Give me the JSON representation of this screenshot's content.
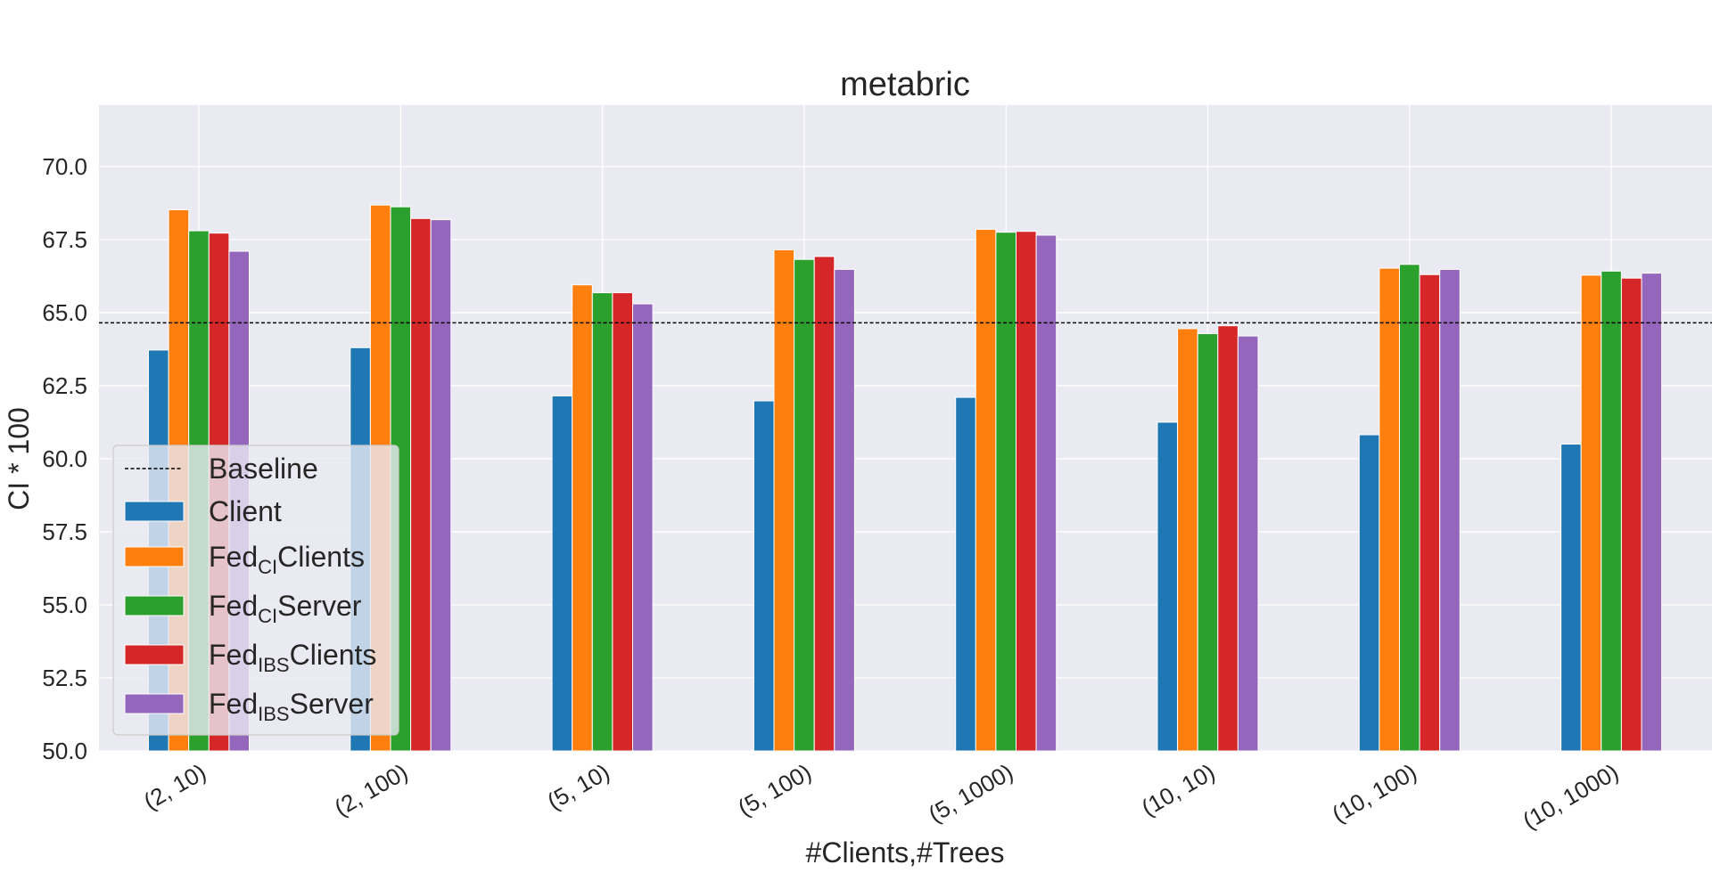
{
  "chart_data": {
    "type": "bar",
    "title": "metabric",
    "xlabel": "#Clients,#Trees",
    "ylabel": "CI * 100",
    "ylim": [
      50.0,
      72.1
    ],
    "yticks": [
      "50.0",
      "52.5",
      "55.0",
      "57.5",
      "60.0",
      "62.5",
      "65.0",
      "67.5",
      "70.0"
    ],
    "categories": [
      "(2, 10)",
      "(2, 100)",
      "(5, 10)",
      "(5, 100)",
      "(5, 1000)",
      "(10, 10)",
      "(10, 100)",
      "(10, 1000)"
    ],
    "grid": true,
    "legend_position": "lower-left",
    "baseline": {
      "label": "Baseline",
      "value": 64.65,
      "style": "dashed",
      "color": "#000000"
    },
    "series": [
      {
        "name": "Client",
        "legend": {
          "base": "Client",
          "sub": "",
          "rest": ""
        },
        "color": "#1f77b4",
        "values": [
          63.72,
          63.8,
          62.15,
          61.98,
          62.1,
          61.25,
          60.82,
          60.5
        ]
      },
      {
        "name": "Fed_CI Clients",
        "legend": {
          "base": "Fed",
          "sub": "CI",
          "rest": "Clients"
        },
        "color": "#ff7f0e",
        "values": [
          68.52,
          68.68,
          65.95,
          67.15,
          67.85,
          64.45,
          66.52,
          66.28
        ]
      },
      {
        "name": "Fed_CI Server",
        "legend": {
          "base": "Fed",
          "sub": "CI",
          "rest": "Server"
        },
        "color": "#2ca02c",
        "values": [
          67.8,
          68.62,
          65.68,
          66.82,
          67.75,
          64.28,
          66.65,
          66.42
        ]
      },
      {
        "name": "Fed_IBS Clients",
        "legend": {
          "base": "Fed",
          "sub": "IBS",
          "rest": "Clients"
        },
        "color": "#d62728",
        "values": [
          67.72,
          68.22,
          65.68,
          66.92,
          67.78,
          64.55,
          66.3,
          66.18
        ]
      },
      {
        "name": "Fed_IBS Server",
        "legend": {
          "base": "Fed",
          "sub": "IBS",
          "rest": "Server"
        },
        "color": "#9467bd",
        "values": [
          67.1,
          68.18,
          65.3,
          66.48,
          67.65,
          64.2,
          66.48,
          66.35
        ]
      }
    ]
  },
  "colors": {
    "plot_background": "#eaeaf2",
    "grid": "#ffffff",
    "text": "#262626"
  }
}
